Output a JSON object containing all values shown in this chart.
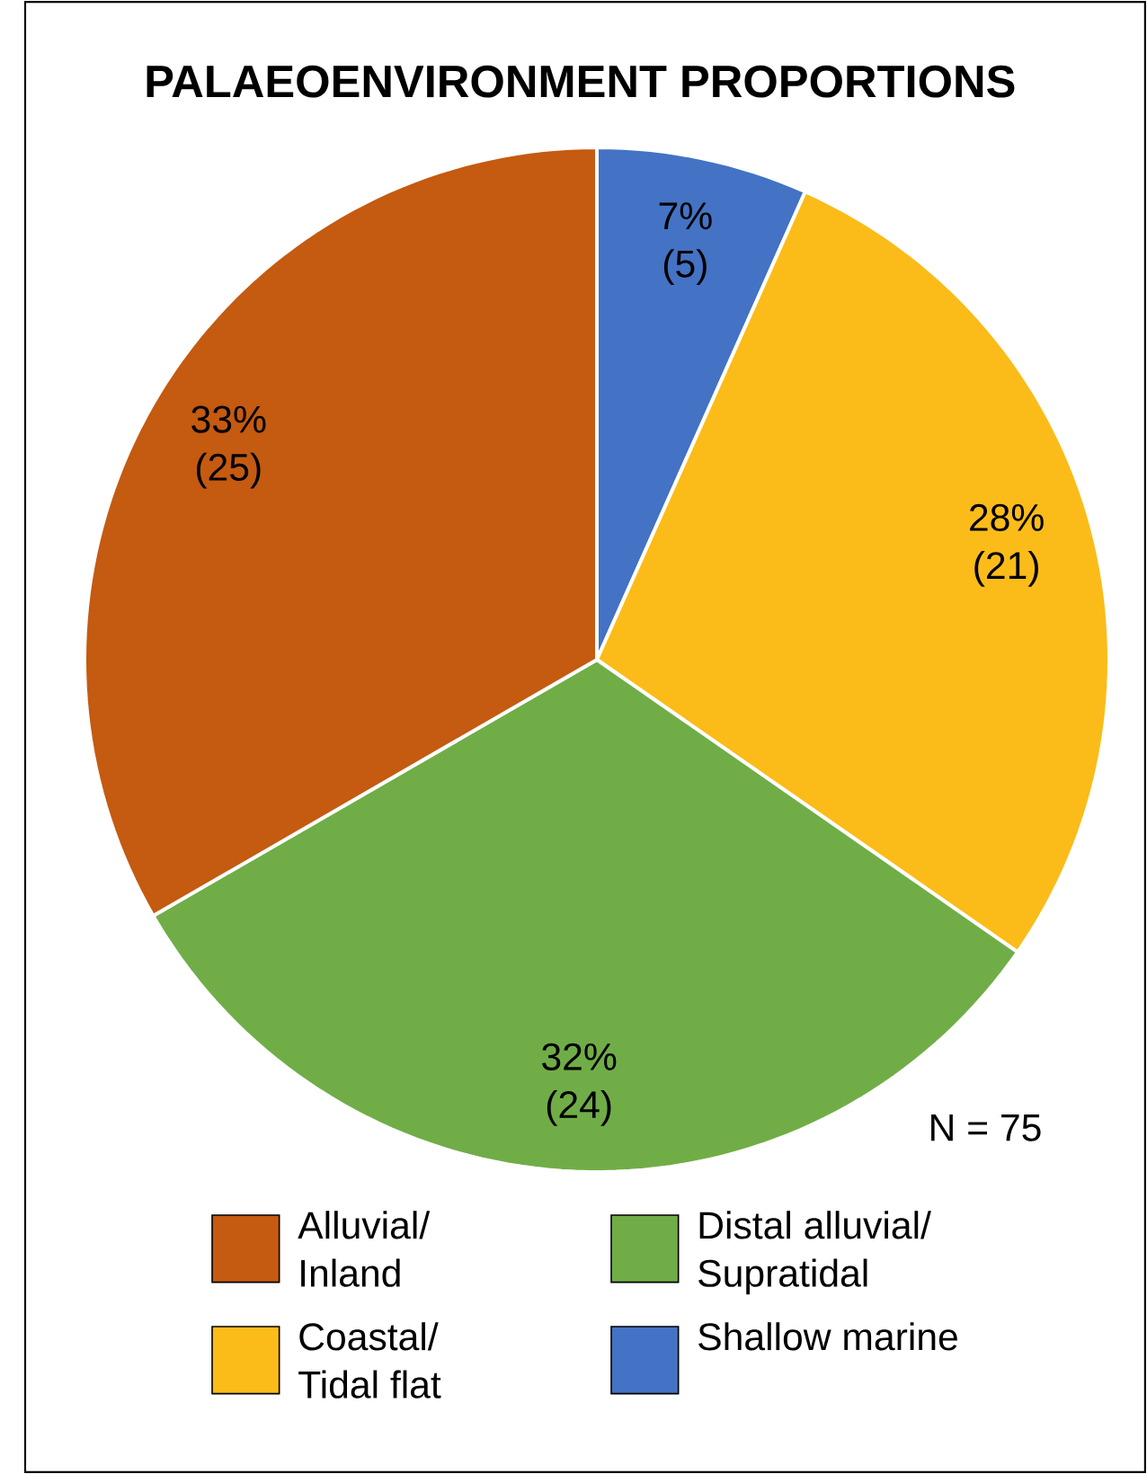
{
  "chart_data": {
    "type": "pie",
    "title": "PALAEOENVIRONMENT PROPORTIONS",
    "categories": [
      "Shallow marine",
      "Coastal/Tidal flat",
      "Distal alluvial/Supratidal",
      "Alluvial/Inland"
    ],
    "values": [
      5,
      21,
      24,
      25
    ],
    "colors": [
      "#4472c4",
      "#fbbc19",
      "#70ad47",
      "#c55a11"
    ],
    "value_labels": [
      "7% (5)",
      "28% (21)",
      "32% (24)",
      "33% (25)"
    ],
    "annotations": [
      "N = 75"
    ],
    "legend": "bottom"
  }
}
